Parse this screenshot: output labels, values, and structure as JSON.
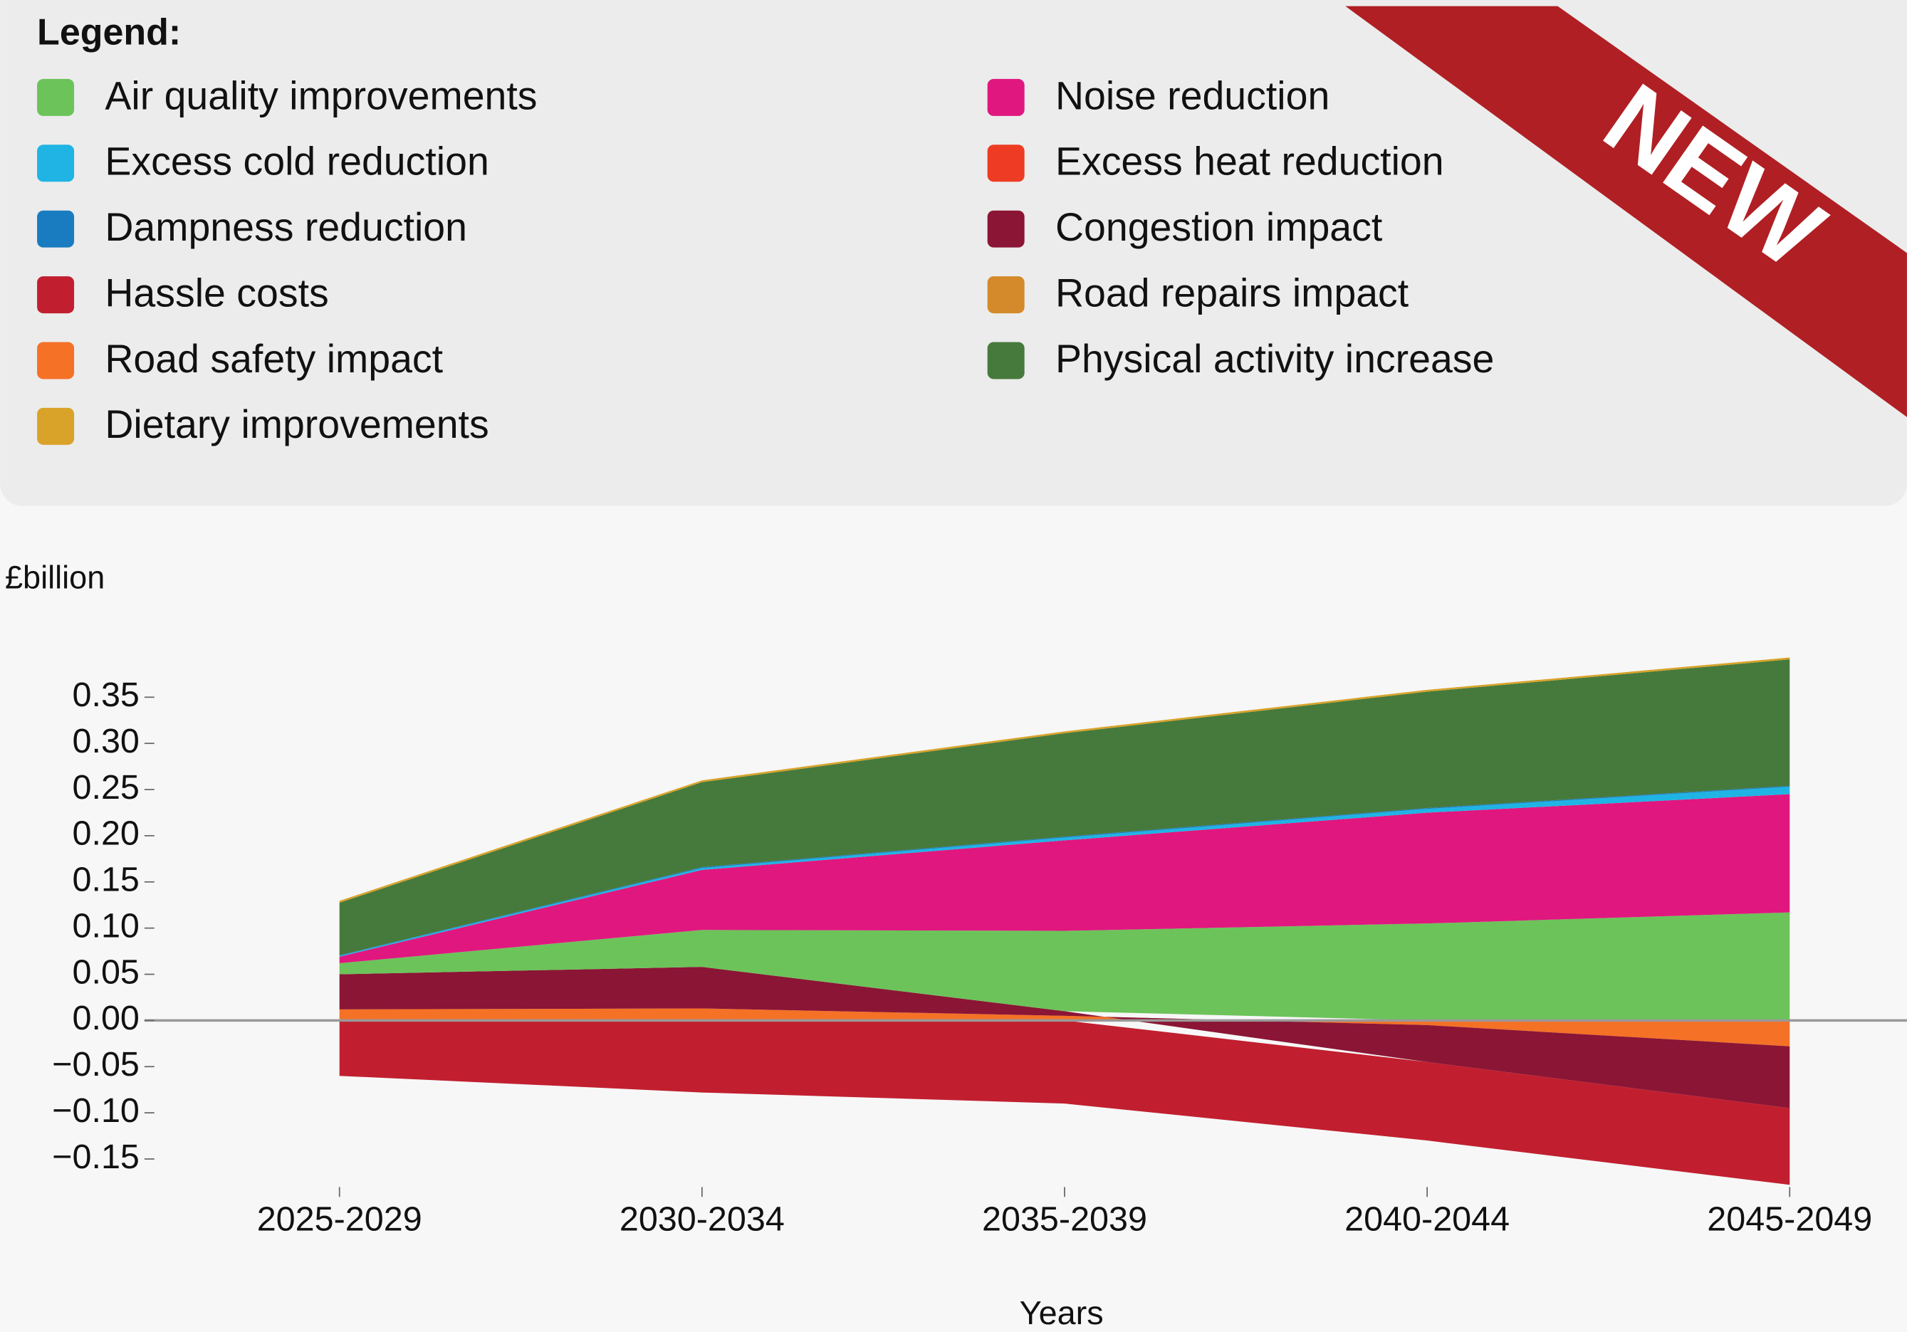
{
  "badge": "NEW",
  "chart_data": {
    "type": "area",
    "legend_title": "Legend:",
    "y_label": "£billion",
    "x_label": "Years",
    "categories": [
      "2025-2029",
      "2030-2034",
      "2035-2039",
      "2040-2044",
      "2045-2049"
    ],
    "series": [
      {
        "name": "Air quality improvements",
        "color": "#6cc35a",
        "values": [
          0.012,
          0.04,
          0.087,
          0.105,
          0.117
        ]
      },
      {
        "name": "Excess cold reduction",
        "color": "#1fb4e4",
        "values": [
          0.001,
          0.002,
          0.003,
          0.004,
          0.008
        ]
      },
      {
        "name": "Dampness reduction",
        "color": "#1a7cc0",
        "values": [
          0.0005,
          0.001,
          0.001,
          0.001,
          0.001
        ]
      },
      {
        "name": "Hassle costs",
        "color": "#c11f2f",
        "values": [
          -0.06,
          -0.078,
          -0.09,
          -0.085,
          -0.083
        ]
      },
      {
        "name": "Road safety impact",
        "color": "#f47126",
        "values": [
          0.012,
          0.013,
          0.005,
          -0.005,
          -0.028
        ]
      },
      {
        "name": "Dietary improvements",
        "color": "#d9a32a",
        "values": [
          0.002,
          0.002,
          0.002,
          0.002,
          0.002
        ]
      },
      {
        "name": "Noise reduction",
        "color": "#e0177f",
        "values": [
          0.007,
          0.065,
          0.098,
          0.12,
          0.128
        ]
      },
      {
        "name": "Excess heat reduction",
        "color": "#ee3b23",
        "values": [
          0,
          0,
          0,
          0,
          0
        ]
      },
      {
        "name": "Congestion impact",
        "color": "#8b1535",
        "values": [
          0.038,
          0.045,
          0.005,
          -0.04,
          -0.067
        ]
      },
      {
        "name": "Road repairs impact",
        "color": "#d48a2a",
        "values": [
          0,
          0,
          0,
          0,
          0
        ]
      },
      {
        "name": "Physical activity increase",
        "color": "#467a3c",
        "values": [
          0.057,
          0.092,
          0.112,
          0.126,
          0.137
        ]
      }
    ],
    "ylim": [
      -0.2,
      0.4
    ],
    "yticks": [
      {
        "value": -0.15,
        "label": "−0.15"
      },
      {
        "value": -0.1,
        "label": "−0.10"
      },
      {
        "value": -0.05,
        "label": "−0.05"
      },
      {
        "value": 0,
        "label": "0.00"
      },
      0.05,
      {
        "value": 0.1,
        "label": "0.10"
      },
      0.15,
      {
        "value": 0.2,
        "label": "0.20"
      },
      0.25,
      {
        "value": 0.3,
        "label": "0.30"
      },
      0.35
    ]
  }
}
